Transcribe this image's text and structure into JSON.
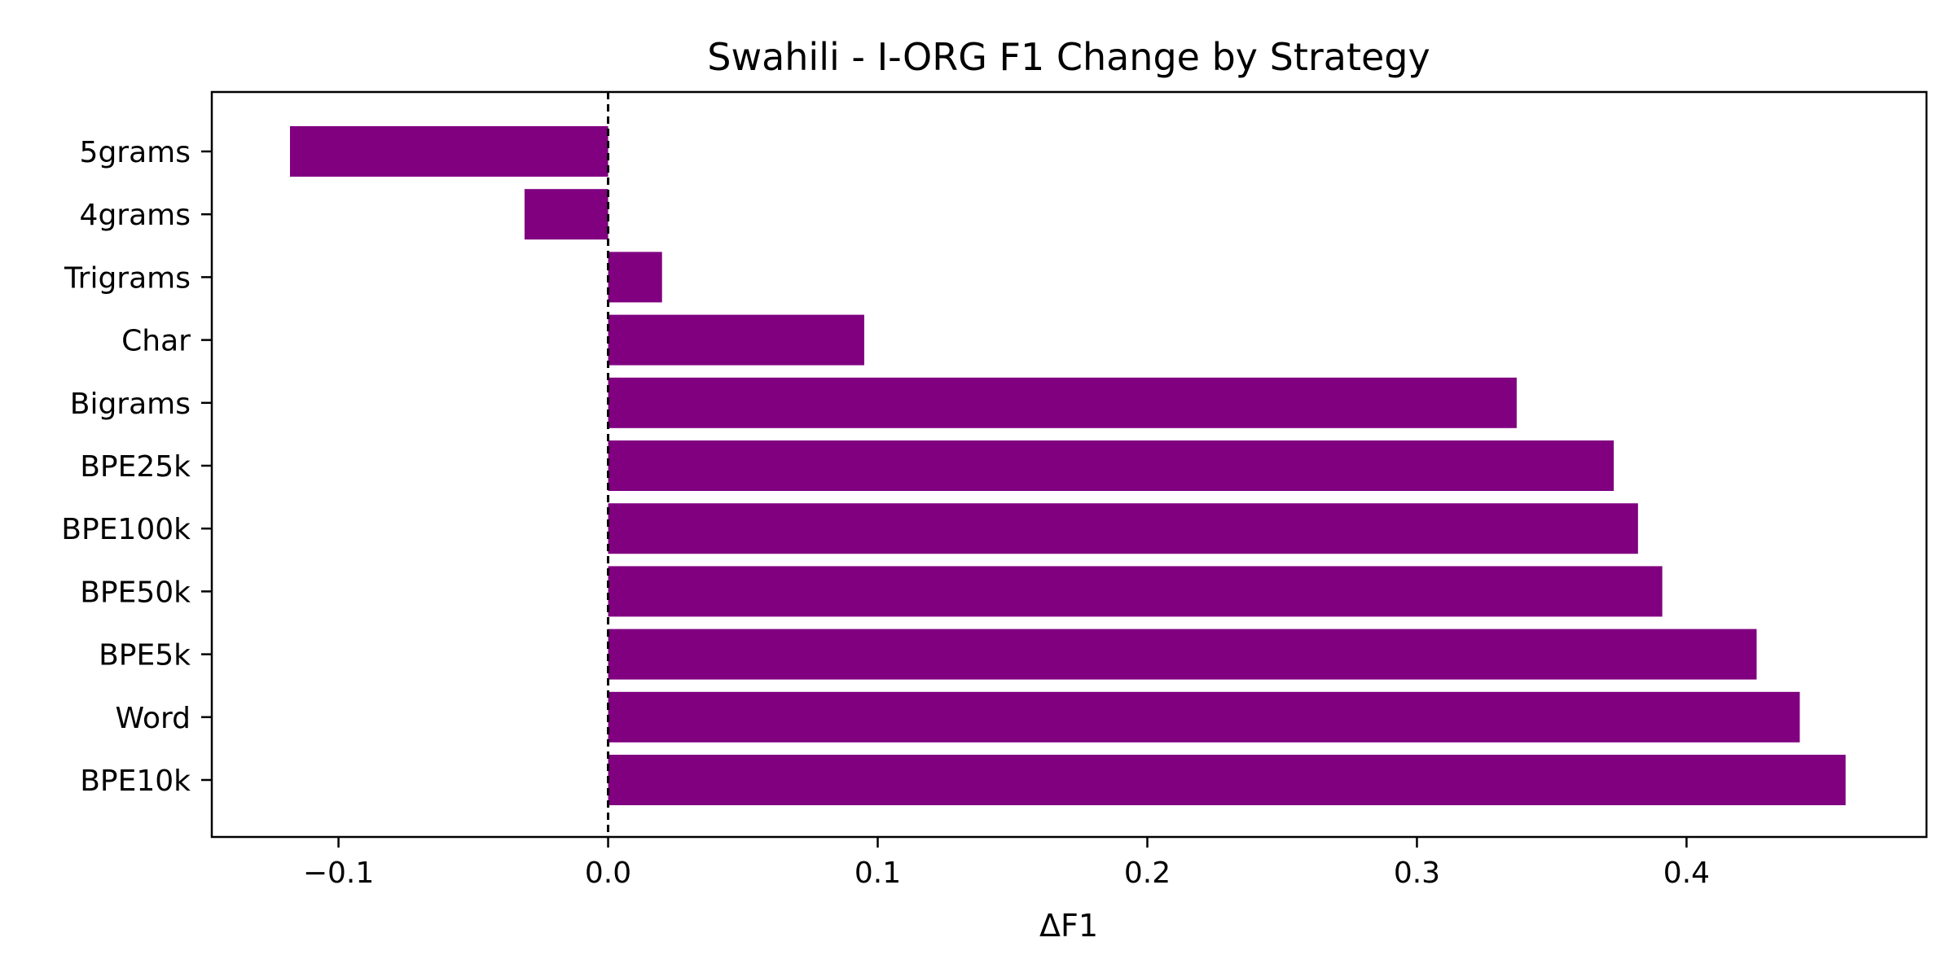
{
  "chart_data": {
    "type": "bar",
    "orientation": "horizontal",
    "title": "Swahili - I-ORG F1 Change by Strategy",
    "xlabel": "ΔF1",
    "ylabel": "",
    "categories": [
      "BPE10k",
      "Word",
      "BPE5k",
      "BPE50k",
      "BPE100k",
      "BPE25k",
      "Bigrams",
      "Char",
      "Trigrams",
      "4grams",
      "5grams"
    ],
    "values": [
      0.459,
      0.442,
      0.426,
      0.391,
      0.382,
      0.373,
      0.337,
      0.095,
      0.02,
      -0.031,
      -0.118
    ],
    "xlim": [
      -0.147,
      0.489
    ],
    "xticks": [
      -0.1,
      0.0,
      0.1,
      0.2,
      0.3,
      0.4
    ],
    "xtick_labels": [
      "−0.1",
      "0.0",
      "0.1",
      "0.2",
      "0.3",
      "0.4"
    ],
    "reference_line": {
      "x": 0.0,
      "style": "dashed"
    },
    "bar_color": "#800080",
    "grid": false,
    "legend": "none"
  }
}
